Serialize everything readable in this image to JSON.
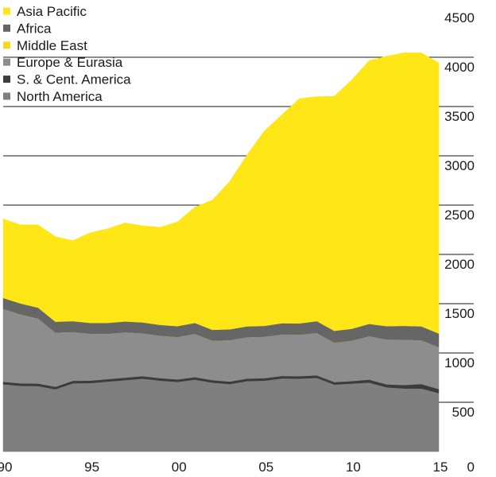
{
  "chart_data": {
    "type": "area",
    "stacked": true,
    "title": "",
    "xlabel": "",
    "ylabel": "",
    "x": [
      1990,
      1991,
      1992,
      1993,
      1994,
      1995,
      1996,
      1997,
      1998,
      1999,
      2000,
      2001,
      2002,
      2003,
      2004,
      2005,
      2006,
      2007,
      2008,
      2009,
      2010,
      2011,
      2012,
      2013,
      2014,
      2015
    ],
    "xlim": [
      1990,
      2015
    ],
    "ylim": [
      0,
      4500
    ],
    "y_ticks": [
      0,
      500,
      1000,
      1500,
      2000,
      2500,
      3000,
      3500,
      4000,
      4500
    ],
    "x_tick_positions": [
      1990,
      1995,
      2000,
      2005,
      2010,
      2015
    ],
    "x_tick_labels": [
      "90",
      "95",
      "00",
      "05",
      "10",
      "15"
    ],
    "gridlines": true,
    "legend_position": "top-left",
    "series": [
      {
        "name": "North America",
        "color": "#7f7f7f",
        "values": [
          683,
          667,
          665,
          632,
          693,
          695,
          710,
          725,
          740,
          720,
          707,
          730,
          700,
          685,
          715,
          720,
          742,
          740,
          748,
          680,
          690,
          700,
          652,
          640,
          640,
          593
        ]
      },
      {
        "name": "S. & Cent. America",
        "color": "#3c3c3c",
        "values": [
          25,
          25,
          25,
          25,
          25,
          25,
          25,
          25,
          25,
          25,
          25,
          25,
          25,
          25,
          25,
          25,
          25,
          25,
          25,
          25,
          25,
          30,
          30,
          35,
          45,
          40
        ]
      },
      {
        "name": "Europe & Eurasia",
        "color": "#8d8d8d",
        "values": [
          740,
          700,
          660,
          550,
          495,
          475,
          460,
          460,
          435,
          430,
          430,
          440,
          400,
          420,
          420,
          420,
          420,
          420,
          430,
          400,
          410,
          440,
          455,
          460,
          445,
          425
        ]
      },
      {
        "name": "Middle East",
        "color": "#eedc22",
        "values": [
          0,
          0,
          0,
          0,
          0,
          0,
          0,
          0,
          0,
          0,
          0,
          0,
          0,
          0,
          0,
          0,
          0,
          0,
          0,
          0,
          0,
          0,
          0,
          0,
          0,
          0
        ]
      },
      {
        "name": "Africa",
        "color": "#666666",
        "values": [
          110,
          110,
          110,
          110,
          110,
          110,
          110,
          110,
          110,
          110,
          110,
          110,
          110,
          110,
          110,
          110,
          115,
          115,
          120,
          120,
          120,
          125,
          135,
          140,
          140,
          140
        ]
      },
      {
        "name": "Asia Pacific",
        "color": "#ffe617",
        "values": [
          802,
          798,
          840,
          863,
          817,
          915,
          955,
          1000,
          980,
          990,
          1058,
          1175,
          1315,
          1500,
          1740,
          1980,
          2115,
          2280,
          2277,
          2380,
          2525,
          2670,
          2738,
          2770,
          2775,
          2745
        ]
      }
    ]
  }
}
